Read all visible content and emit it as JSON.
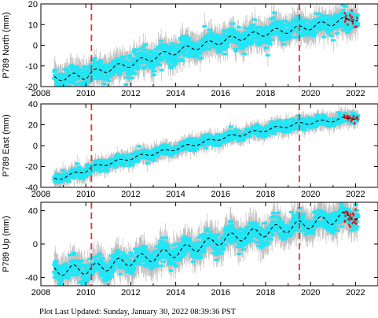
{
  "footer_text": "Plot Last Updated:   Sunday, January 30, 2022 08:39:36 PST",
  "colors": {
    "data": "#22e5f5",
    "errorbar": "#b5b5b5",
    "model": "#000000",
    "event": "#e8342a",
    "recent": "#d42020"
  },
  "chart_data": [
    {
      "type": "scatter",
      "ylabel": "P789 North (mm)",
      "xlim": [
        2008,
        2023
      ],
      "ylim": [
        -20,
        20
      ],
      "xticks": [
        2008,
        2010,
        2012,
        2014,
        2016,
        2018,
        2020,
        2022
      ],
      "yticks": [
        -20,
        -10,
        0,
        10,
        20
      ],
      "event_lines": [
        2010.25,
        2019.5
      ],
      "trend": [
        [
          2008.7,
          -16
        ],
        [
          2009.5,
          -15
        ],
        [
          2010.0,
          -15
        ],
        [
          2010.25,
          -13.5
        ],
        [
          2012,
          -9
        ],
        [
          2014,
          -3
        ],
        [
          2016,
          2
        ],
        [
          2018,
          6
        ],
        [
          2019.5,
          8
        ],
        [
          2020.5,
          10
        ],
        [
          2022,
          13
        ]
      ],
      "seasonal_amp": 1.5,
      "scatter": 2.5,
      "errbar": 5,
      "data_range": [
        2008.6,
        2022.1
      ]
    },
    {
      "type": "scatter",
      "ylabel": "P789 East (mm)",
      "xlim": [
        2008,
        2023
      ],
      "ylim": [
        -40,
        40
      ],
      "xticks": [
        2008,
        2010,
        2012,
        2014,
        2016,
        2018,
        2020,
        2022
      ],
      "yticks": [
        -40,
        -20,
        0,
        20,
        40
      ],
      "event_lines": [
        2010.25,
        2019.5
      ],
      "trend": [
        [
          2008.7,
          -32
        ],
        [
          2010.0,
          -24
        ],
        [
          2010.25,
          -21
        ],
        [
          2012,
          -12
        ],
        [
          2014,
          -3
        ],
        [
          2016,
          7
        ],
        [
          2018,
          15
        ],
        [
          2019.5,
          21
        ],
        [
          2020.5,
          23
        ],
        [
          2022,
          27
        ]
      ],
      "seasonal_amp": 1.5,
      "scatter": 2.5,
      "errbar": 6,
      "data_range": [
        2008.6,
        2022.1
      ]
    },
    {
      "type": "scatter",
      "ylabel": "P789 Up (mm)",
      "xlim": [
        2008,
        2023
      ],
      "ylim": [
        -50,
        50
      ],
      "xticks": [
        2008,
        2010,
        2012,
        2014,
        2016,
        2018,
        2020,
        2022
      ],
      "yticks": [
        -40,
        0,
        40
      ],
      "event_lines": [
        2010.25,
        2019.5
      ],
      "trend": [
        [
          2008.7,
          -32
        ],
        [
          2010.25,
          -30
        ],
        [
          2012,
          -20
        ],
        [
          2014,
          -10
        ],
        [
          2016,
          5
        ],
        [
          2018,
          15
        ],
        [
          2019.5,
          22
        ],
        [
          2020.5,
          27
        ],
        [
          2022,
          35
        ]
      ],
      "seasonal_amp": 6,
      "scatter": 6,
      "errbar": 14,
      "data_range": [
        2008.6,
        2022.1
      ]
    }
  ]
}
